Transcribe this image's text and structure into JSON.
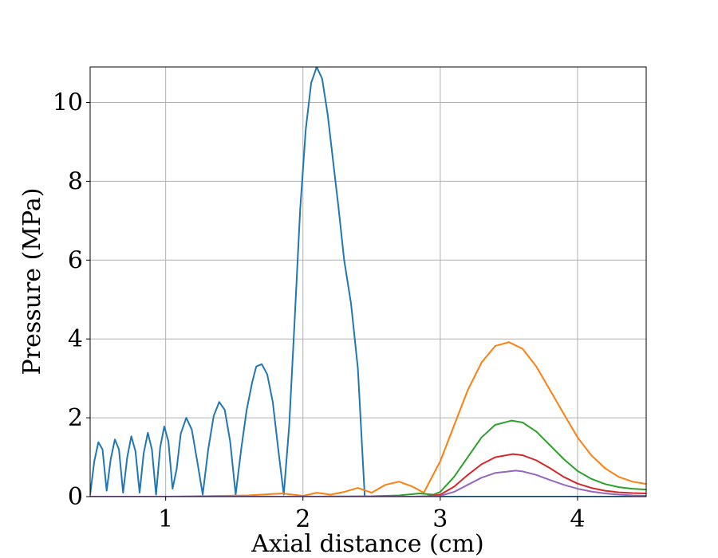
{
  "chart_data": {
    "type": "line",
    "title": "",
    "xlabel": "Axial distance (cm)",
    "ylabel": "Pressure (MPa)",
    "xlim": [
      0.45,
      4.5
    ],
    "ylim": [
      0,
      10.9
    ],
    "xticks": [
      1,
      2,
      3,
      4
    ],
    "xtick_labels": [
      "1",
      "2",
      "3",
      "4"
    ],
    "yticks": [
      0,
      2,
      4,
      6,
      8,
      10
    ],
    "ytick_labels": [
      "0",
      "2",
      "4",
      "6",
      "8",
      "10"
    ],
    "grid": true,
    "legend": "none",
    "series": [
      {
        "color": "#1f77b4",
        "x": [
          0.45,
          0.48,
          0.51,
          0.54,
          0.57,
          0.6,
          0.63,
          0.66,
          0.69,
          0.72,
          0.75,
          0.78,
          0.81,
          0.84,
          0.87,
          0.9,
          0.93,
          0.96,
          0.99,
          1.02,
          1.05,
          1.08,
          1.11,
          1.15,
          1.19,
          1.23,
          1.27,
          1.31,
          1.35,
          1.39,
          1.43,
          1.47,
          1.51,
          1.55,
          1.59,
          1.63,
          1.66,
          1.7,
          1.74,
          1.78,
          1.82,
          1.86,
          1.9,
          1.94,
          1.98,
          2.02,
          2.06,
          2.1,
          2.14,
          2.18,
          2.22,
          2.26,
          2.3,
          2.35,
          2.4,
          2.45,
          2.5,
          2.55,
          2.6,
          2.63,
          2.7,
          2.8,
          2.9,
          3.0,
          3.1,
          3.2,
          3.3,
          3.42,
          3.55,
          3.7,
          3.85,
          4.0,
          4.15,
          4.3,
          4.5
        ],
        "y": [
          0.05,
          0.9,
          1.38,
          1.2,
          0.15,
          0.95,
          1.45,
          1.2,
          0.1,
          1.0,
          1.53,
          1.15,
          0.1,
          1.1,
          1.62,
          1.2,
          0.05,
          1.25,
          1.78,
          1.4,
          0.2,
          0.7,
          1.6,
          2.0,
          1.7,
          0.9,
          0.05,
          1.2,
          2.05,
          2.4,
          2.2,
          1.4,
          0.05,
          1.2,
          2.2,
          2.9,
          3.3,
          3.36,
          3.1,
          2.4,
          1.2,
          0.05,
          1.8,
          4.5,
          7.3,
          9.3,
          10.5,
          10.9,
          10.6,
          9.7,
          8.5,
          7.3,
          6.0,
          4.9,
          3.25,
          0.0,
          0.0,
          0.0,
          0.0,
          0.0,
          0.0,
          0.0,
          0.0,
          0.0,
          0.0,
          0.0,
          0.0,
          0.0,
          0.0,
          0.0,
          0.0,
          0.0,
          0.0,
          0.0,
          0.0
        ]
      },
      {
        "color": "#ff7f0e",
        "x": [
          0.45,
          0.8,
          1.0,
          1.2,
          1.4,
          1.6,
          1.85,
          2.0,
          2.1,
          2.2,
          2.3,
          2.4,
          2.5,
          2.6,
          2.7,
          2.8,
          2.88,
          3.0,
          3.1,
          3.2,
          3.3,
          3.4,
          3.5,
          3.6,
          3.7,
          3.8,
          3.9,
          4.0,
          4.1,
          4.2,
          4.3,
          4.4,
          4.5
        ],
        "y": [
          0.0,
          0.0,
          0.0,
          0.01,
          0.02,
          0.03,
          0.08,
          0.02,
          0.1,
          0.05,
          0.12,
          0.22,
          0.1,
          0.3,
          0.38,
          0.25,
          0.1,
          0.9,
          1.8,
          2.7,
          3.4,
          3.82,
          3.92,
          3.75,
          3.3,
          2.7,
          2.1,
          1.5,
          1.05,
          0.72,
          0.5,
          0.38,
          0.32
        ]
      },
      {
        "color": "#2ca02c",
        "x": [
          0.45,
          1.0,
          2.0,
          2.5,
          2.7,
          2.85,
          2.95,
          3.0,
          3.1,
          3.2,
          3.3,
          3.4,
          3.52,
          3.6,
          3.7,
          3.8,
          3.9,
          4.0,
          4.1,
          4.2,
          4.3,
          4.4,
          4.5
        ],
        "y": [
          0.0,
          0.0,
          0.0,
          0.01,
          0.03,
          0.08,
          0.05,
          0.12,
          0.5,
          1.0,
          1.5,
          1.82,
          1.93,
          1.88,
          1.65,
          1.3,
          0.95,
          0.65,
          0.45,
          0.32,
          0.24,
          0.2,
          0.18
        ]
      },
      {
        "color": "#d62728",
        "x": [
          0.45,
          1.0,
          2.0,
          2.8,
          2.9,
          3.0,
          3.1,
          3.2,
          3.3,
          3.4,
          3.53,
          3.6,
          3.7,
          3.8,
          3.9,
          4.0,
          4.1,
          4.2,
          4.3,
          4.4,
          4.5
        ],
        "y": [
          0.0,
          0.0,
          0.0,
          0.0,
          0.01,
          0.05,
          0.25,
          0.55,
          0.82,
          1.0,
          1.08,
          1.05,
          0.92,
          0.72,
          0.5,
          0.33,
          0.22,
          0.15,
          0.11,
          0.09,
          0.08
        ]
      },
      {
        "color": "#9467bd",
        "x": [
          0.45,
          1.0,
          2.0,
          2.9,
          3.0,
          3.1,
          3.2,
          3.3,
          3.4,
          3.55,
          3.6,
          3.7,
          3.8,
          3.9,
          4.0,
          4.1,
          4.2,
          4.3,
          4.4,
          4.5
        ],
        "y": [
          0.0,
          0.0,
          0.0,
          0.0,
          0.02,
          0.12,
          0.3,
          0.48,
          0.6,
          0.66,
          0.64,
          0.55,
          0.42,
          0.3,
          0.2,
          0.13,
          0.08,
          0.05,
          0.03,
          0.02
        ]
      }
    ]
  }
}
